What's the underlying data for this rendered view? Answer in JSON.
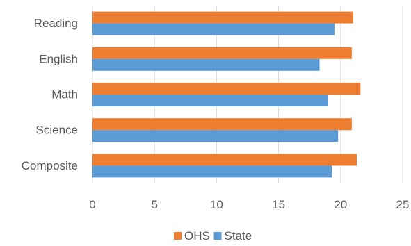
{
  "chart_data": {
    "type": "bar",
    "orientation": "horizontal",
    "categories": [
      "Reading",
      "English",
      "Math",
      "Science",
      "Composite"
    ],
    "series": [
      {
        "name": "OHS",
        "color": "#ED7D31",
        "values": [
          21.0,
          20.9,
          21.6,
          20.9,
          21.3
        ]
      },
      {
        "name": "State",
        "color": "#5B9BD5",
        "values": [
          19.5,
          18.3,
          19.0,
          19.8,
          19.3
        ]
      }
    ],
    "xlim": [
      0,
      25
    ],
    "xticks": [
      0,
      5,
      10,
      15,
      20,
      25
    ],
    "grid": true,
    "legend_position": "bottom",
    "title": "",
    "xlabel": "",
    "ylabel": ""
  },
  "colors": {
    "gridline": "#D9D9D9",
    "text": "#595959"
  }
}
